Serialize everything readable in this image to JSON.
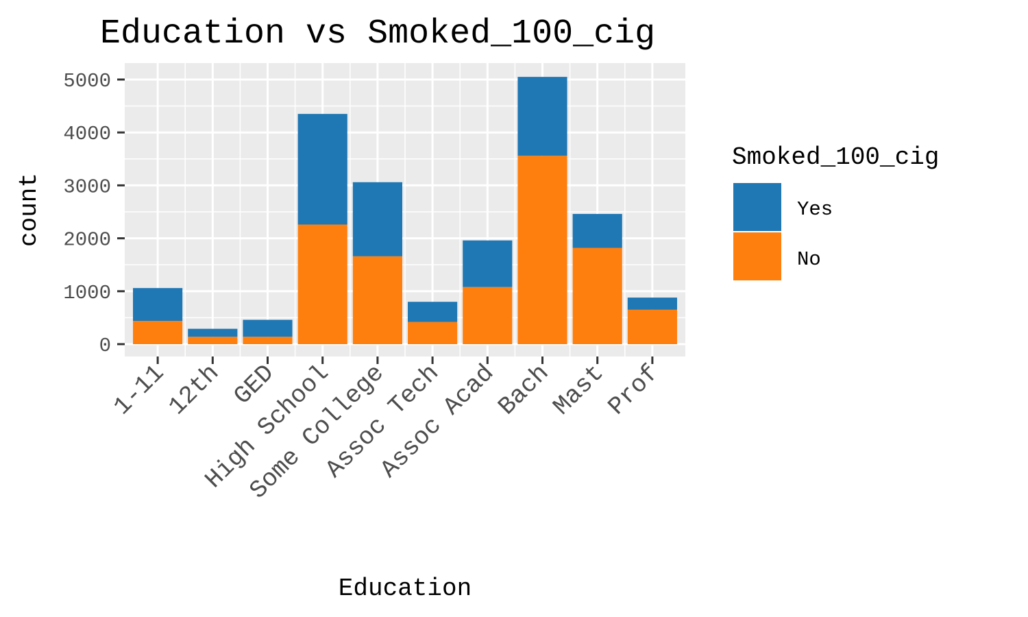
{
  "chart_data": {
    "type": "bar",
    "stacked": true,
    "title": "Education vs Smoked_100_cig",
    "xlabel": "Education",
    "ylabel": "count",
    "categories": [
      "1-11",
      "12th",
      "GED",
      "High School",
      "Some College",
      "Assoc Tech",
      "Assoc Acad",
      "Bach",
      "Mast",
      "Prof"
    ],
    "series": [
      {
        "name": "No",
        "color": "#ff7f0e",
        "values": [
          440,
          140,
          140,
          2260,
          1660,
          420,
          1080,
          3560,
          1820,
          650
        ]
      },
      {
        "name": "Yes",
        "color": "#1f77b4",
        "values": [
          620,
          150,
          320,
          2090,
          1400,
          380,
          880,
          1490,
          640,
          230
        ]
      }
    ],
    "ylim": [
      -250,
      5300
    ],
    "yticks": [
      0,
      1000,
      2000,
      3000,
      4000,
      5000
    ],
    "grid": true,
    "legend": {
      "title": "Smoked_100_cig",
      "position": "right",
      "entries": [
        "Yes",
        "No"
      ]
    },
    "colors": {
      "panel": "#ebebeb",
      "grid": "#ffffff",
      "tick_text": "#4d4d4d",
      "text": "#000000"
    }
  }
}
